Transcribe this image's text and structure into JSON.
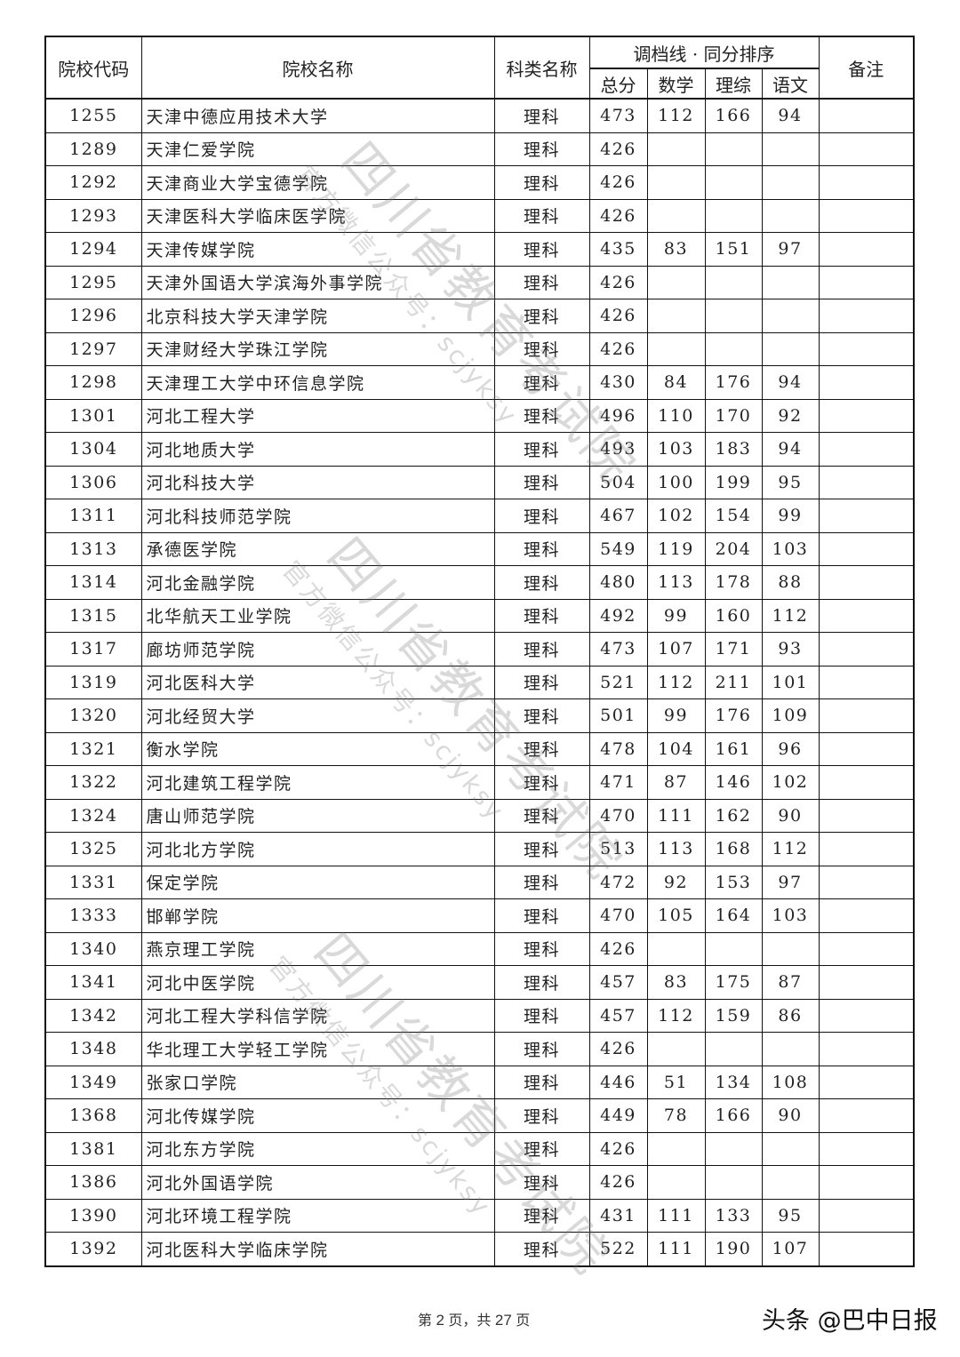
{
  "table": {
    "headers": {
      "code": "院校代码",
      "name": "院校名称",
      "category": "科类名称",
      "group": "调档线 · 同分排序",
      "total": "总分",
      "math": "数学",
      "science": "理综",
      "chinese": "语文",
      "note": "备注"
    },
    "rows": [
      [
        "1255",
        "天津中德应用技术大学",
        "理科",
        "473",
        "112",
        "166",
        "94",
        ""
      ],
      [
        "1289",
        "天津仁爱学院",
        "理科",
        "426",
        "",
        "",
        "",
        ""
      ],
      [
        "1292",
        "天津商业大学宝德学院",
        "理科",
        "426",
        "",
        "",
        "",
        ""
      ],
      [
        "1293",
        "天津医科大学临床医学院",
        "理科",
        "426",
        "",
        "",
        "",
        ""
      ],
      [
        "1294",
        "天津传媒学院",
        "理科",
        "435",
        "83",
        "151",
        "97",
        ""
      ],
      [
        "1295",
        "天津外国语大学滨海外事学院",
        "理科",
        "426",
        "",
        "",
        "",
        ""
      ],
      [
        "1296",
        "北京科技大学天津学院",
        "理科",
        "426",
        "",
        "",
        "",
        ""
      ],
      [
        "1297",
        "天津财经大学珠江学院",
        "理科",
        "426",
        "",
        "",
        "",
        ""
      ],
      [
        "1298",
        "天津理工大学中环信息学院",
        "理科",
        "430",
        "84",
        "176",
        "94",
        ""
      ],
      [
        "1301",
        "河北工程大学",
        "理科",
        "496",
        "110",
        "170",
        "92",
        ""
      ],
      [
        "1304",
        "河北地质大学",
        "理科",
        "493",
        "103",
        "183",
        "94",
        ""
      ],
      [
        "1306",
        "河北科技大学",
        "理科",
        "504",
        "100",
        "199",
        "95",
        ""
      ],
      [
        "1311",
        "河北科技师范学院",
        "理科",
        "467",
        "102",
        "154",
        "99",
        ""
      ],
      [
        "1313",
        "承德医学院",
        "理科",
        "549",
        "119",
        "204",
        "103",
        ""
      ],
      [
        "1314",
        "河北金融学院",
        "理科",
        "480",
        "113",
        "178",
        "88",
        ""
      ],
      [
        "1315",
        "北华航天工业学院",
        "理科",
        "492",
        "99",
        "160",
        "112",
        ""
      ],
      [
        "1317",
        "廊坊师范学院",
        "理科",
        "473",
        "107",
        "171",
        "93",
        ""
      ],
      [
        "1319",
        "河北医科大学",
        "理科",
        "521",
        "112",
        "211",
        "101",
        ""
      ],
      [
        "1320",
        "河北经贸大学",
        "理科",
        "501",
        "99",
        "176",
        "109",
        ""
      ],
      [
        "1321",
        "衡水学院",
        "理科",
        "478",
        "104",
        "161",
        "96",
        ""
      ],
      [
        "1322",
        "河北建筑工程学院",
        "理科",
        "471",
        "87",
        "146",
        "102",
        ""
      ],
      [
        "1324",
        "唐山师范学院",
        "理科",
        "470",
        "111",
        "162",
        "90",
        ""
      ],
      [
        "1325",
        "河北北方学院",
        "理科",
        "513",
        "113",
        "168",
        "112",
        ""
      ],
      [
        "1331",
        "保定学院",
        "理科",
        "472",
        "92",
        "153",
        "97",
        ""
      ],
      [
        "1333",
        "邯郸学院",
        "理科",
        "470",
        "105",
        "164",
        "103",
        ""
      ],
      [
        "1340",
        "燕京理工学院",
        "理科",
        "426",
        "",
        "",
        "",
        ""
      ],
      [
        "1341",
        "河北中医学院",
        "理科",
        "457",
        "83",
        "175",
        "87",
        ""
      ],
      [
        "1342",
        "河北工程大学科信学院",
        "理科",
        "457",
        "112",
        "159",
        "86",
        ""
      ],
      [
        "1348",
        "华北理工大学轻工学院",
        "理科",
        "426",
        "",
        "",
        "",
        ""
      ],
      [
        "1349",
        "张家口学院",
        "理科",
        "446",
        "51",
        "134",
        "108",
        ""
      ],
      [
        "1368",
        "河北传媒学院",
        "理科",
        "449",
        "78",
        "166",
        "90",
        ""
      ],
      [
        "1381",
        "河北东方学院",
        "理科",
        "426",
        "",
        "",
        "",
        ""
      ],
      [
        "1386",
        "河北外国语学院",
        "理科",
        "426",
        "",
        "",
        "",
        ""
      ],
      [
        "1390",
        "河北环境工程学院",
        "理科",
        "431",
        "111",
        "133",
        "95",
        ""
      ],
      [
        "1392",
        "河北医科大学临床学院",
        "理科",
        "522",
        "111",
        "190",
        "107",
        ""
      ]
    ]
  },
  "footer": {
    "prefix": "第",
    "page": "2",
    "mid": "页，共",
    "total": "27",
    "suffix": "页"
  },
  "brand": "头条 @巴中日报",
  "watermark": {
    "title": "四川省教育考试院",
    "subtitle": "官方微信公众号：scjyksy"
  }
}
